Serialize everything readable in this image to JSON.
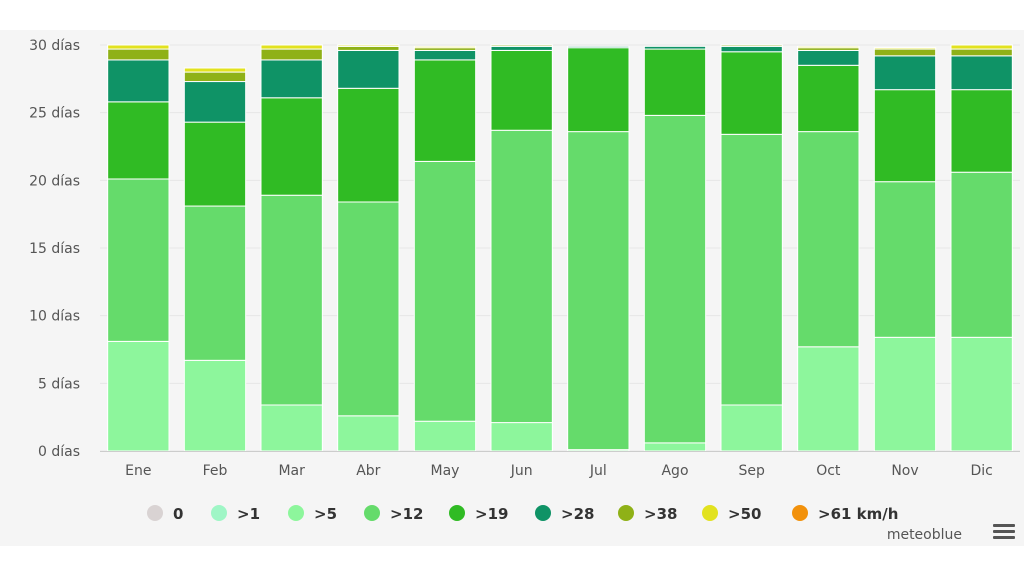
{
  "chart_data": {
    "type": "bar",
    "stacked": true,
    "categories": [
      "Ene",
      "Feb",
      "Mar",
      "Abr",
      "May",
      "Jun",
      "Jul",
      "Ago",
      "Sep",
      "Oct",
      "Nov",
      "Dic"
    ],
    "y_ticks": [
      "0 días",
      "5 días",
      "10 días",
      "15 días",
      "20 días",
      "25 días",
      "30 días"
    ],
    "ylim": [
      0,
      30
    ],
    "grid": true,
    "legend_position": "bottom",
    "series": [
      {
        "name": "0",
        "color": "#d9d3d3",
        "values": [
          0,
          0,
          0,
          0,
          0,
          0,
          0,
          0,
          0,
          0,
          0,
          0
        ]
      },
      {
        "name": ">1",
        "color": "#9ff6c6",
        "values": [
          0,
          0,
          0,
          0,
          0,
          0,
          0,
          0,
          0,
          0,
          0,
          0
        ]
      },
      {
        "name": ">5",
        "color": "#8df69c",
        "values": [
          8.1,
          6.7,
          3.4,
          2.6,
          2.2,
          2.1,
          0.1,
          0.6,
          3.4,
          7.7,
          8.4,
          8.4
        ]
      },
      {
        "name": ">12",
        "color": "#65db6b",
        "values": [
          12.0,
          11.4,
          15.5,
          15.8,
          19.2,
          21.6,
          23.5,
          24.2,
          20.0,
          15.9,
          11.5,
          12.2
        ]
      },
      {
        "name": ">19",
        "color": "#30bb24",
        "values": [
          5.7,
          6.2,
          7.2,
          8.4,
          7.5,
          5.9,
          6.2,
          4.9,
          6.1,
          4.9,
          6.8,
          6.1
        ]
      },
      {
        "name": ">28",
        "color": "#0f9366",
        "values": [
          3.1,
          3.0,
          2.8,
          2.8,
          0.7,
          0.3,
          0.1,
          0.2,
          0.4,
          1.1,
          2.5,
          2.5
        ]
      },
      {
        "name": ">38",
        "color": "#8fb117",
        "values": [
          0.8,
          0.7,
          0.8,
          0.3,
          0.2,
          0.1,
          0,
          0,
          0.1,
          0.2,
          0.5,
          0.5
        ]
      },
      {
        "name": ">50",
        "color": "#e2e21f",
        "values": [
          0.3,
          0.3,
          0.3,
          0.1,
          0.1,
          0,
          0,
          0,
          0,
          0.1,
          0.1,
          0.3
        ]
      },
      {
        "name": ">61 km/h",
        "color": "#f2910b",
        "values": [
          0,
          0,
          0,
          0,
          0,
          0,
          0,
          0,
          0,
          0,
          0,
          0
        ]
      }
    ]
  },
  "credit": "meteoblue"
}
